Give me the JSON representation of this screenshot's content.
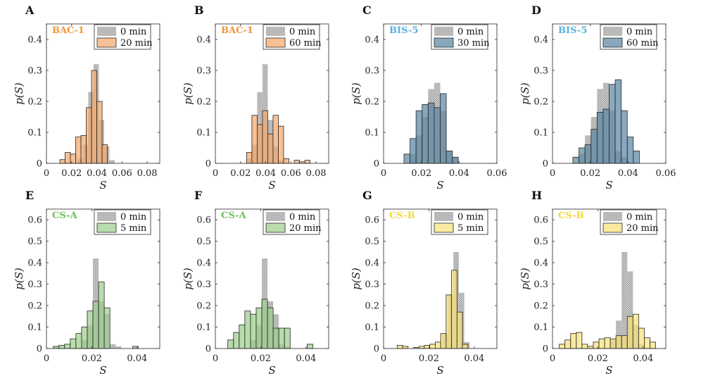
{
  "figure": {
    "ylabel": "p(S)",
    "xlabel": "S"
  },
  "colors": {
    "baseline_fill": "#c8c8c8",
    "orange": "#f4a96c",
    "orange_label": "#f0953a",
    "blue": "#5b87a4",
    "blue_label": "#5ab0dc",
    "green": "#9ccf8c",
    "green_label": "#6cc25a",
    "yellow": "#f7e27a",
    "yellow_label": "#f2d83c",
    "axis": "#262626",
    "edge": "#262626"
  },
  "chart_data": [
    {
      "panel": "A",
      "type": "bar",
      "strain": "BAC-1",
      "strain_color": "orange_label",
      "treat_color": "orange",
      "legend": [
        "0 min",
        "20 min"
      ],
      "xlabel": "S",
      "ylabel": "p(S)",
      "xlim": [
        0,
        0.09
      ],
      "ylim": [
        0,
        0.45
      ],
      "xticks": [
        0,
        0.02,
        0.04,
        0.06,
        0.08
      ],
      "xtick_labels": [
        "0",
        "0.02",
        "0.04",
        "0.06",
        "0.08"
      ],
      "yticks": [
        0,
        0.1,
        0.2,
        0.3,
        0.4
      ],
      "ytick_labels": [
        "0",
        "0.1",
        "0.2",
        "0.3",
        "0.4"
      ],
      "bin_width": 0.0042,
      "baseline": {
        "name": "0 min",
        "edges_start": 0.0248,
        "values": [
          0.015,
          0.06,
          0.23,
          0.32,
          0.14,
          0.055,
          0.01
        ]
      },
      "treated": {
        "name": "20 min",
        "edges_start": 0.0106,
        "values": [
          0.012,
          0.035,
          0.03,
          0.085,
          0.09,
          0.18,
          0.3,
          0.2,
          0.06
        ]
      }
    },
    {
      "panel": "B",
      "type": "bar",
      "strain": "BAC-1",
      "strain_color": "orange_label",
      "treat_color": "orange",
      "legend": [
        "0 min",
        "60 min"
      ],
      "xlabel": "S",
      "ylabel": "p(S)",
      "xlim": [
        0,
        0.09
      ],
      "ylim": [
        0,
        0.45
      ],
      "xticks": [
        0,
        0.02,
        0.04,
        0.06,
        0.08
      ],
      "xtick_labels": [
        "0",
        "0.02",
        "0.04",
        "0.06",
        "0.08"
      ],
      "yticks": [
        0,
        0.1,
        0.2,
        0.3,
        0.4
      ],
      "ytick_labels": [
        "0",
        "0.1",
        "0.2",
        "0.3",
        "0.4"
      ],
      "bin_width": 0.0042,
      "baseline": {
        "name": "0 min",
        "edges_start": 0.0248,
        "values": [
          0.015,
          0.06,
          0.23,
          0.32,
          0.14,
          0.055,
          0.01
        ]
      },
      "treated": {
        "name": "60 min",
        "edges_start": 0.0248,
        "values": [
          0.035,
          0.155,
          0.125,
          0.17,
          0.095,
          0.155,
          0.12,
          0.015,
          0,
          0.01,
          0.005,
          0.01
        ]
      }
    },
    {
      "panel": "C",
      "type": "bar",
      "strain": "BIS-5",
      "strain_color": "blue_label",
      "treat_color": "blue",
      "legend": [
        "0 min",
        "30 min"
      ],
      "xlabel": "S",
      "ylabel": "p(S)",
      "xlim": [
        0,
        0.06
      ],
      "ylim": [
        0,
        0.45
      ],
      "xticks": [
        0,
        0.02,
        0.04,
        0.06
      ],
      "xtick_labels": [
        "0",
        "0.02",
        "0.04",
        "0.06"
      ],
      "yticks": [
        0,
        0.1,
        0.2,
        0.3,
        0.4
      ],
      "ytick_labels": [
        "0",
        "0.1",
        "0.2",
        "0.3",
        "0.4"
      ],
      "bin_width": 0.0032,
      "baseline": {
        "name": "0 min",
        "edges_start": 0.014,
        "values": [
          0.03,
          0.09,
          0.15,
          0.24,
          0.26,
          0.17,
          0.04,
          0.02
        ]
      },
      "treated": {
        "name": "30 min",
        "edges_start": 0.0108,
        "values": [
          0.03,
          0.08,
          0.17,
          0.19,
          0.195,
          0.18,
          0.225,
          0.04,
          0.02
        ]
      }
    },
    {
      "panel": "D",
      "type": "bar",
      "strain": "BIS-5",
      "strain_color": "blue_label",
      "treat_color": "blue",
      "legend": [
        "0 min",
        "60 min"
      ],
      "xlabel": "S",
      "ylabel": "p(S)",
      "xlim": [
        0,
        0.06
      ],
      "ylim": [
        0,
        0.45
      ],
      "xticks": [
        0,
        0.02,
        0.04,
        0.06
      ],
      "xtick_labels": [
        "0",
        "0.02",
        "0.04",
        "0.06"
      ],
      "yticks": [
        0,
        0.1,
        0.2,
        0.3,
        0.4
      ],
      "ytick_labels": [
        "0",
        "0.1",
        "0.2",
        "0.3",
        "0.4"
      ],
      "bin_width": 0.0032,
      "baseline": {
        "name": "0 min",
        "edges_start": 0.014,
        "values": [
          0.03,
          0.09,
          0.15,
          0.24,
          0.26,
          0.17,
          0.04,
          0.02
        ]
      },
      "treated": {
        "name": "60 min",
        "edges_start": 0.0108,
        "values": [
          0.02,
          0.05,
          0.06,
          0.11,
          0.165,
          0.175,
          0.255,
          0.27,
          0.17,
          0.085,
          0.04
        ]
      }
    },
    {
      "panel": "E",
      "type": "bar",
      "strain": "CS-A",
      "strain_color": "green_label",
      "treat_color": "green",
      "legend": [
        "0 min",
        "5 min"
      ],
      "xlabel": "S",
      "ylabel": "p(S)",
      "xlim": [
        0,
        0.05
      ],
      "ylim": [
        0,
        0.65
      ],
      "xticks": [
        0,
        0.02,
        0.04
      ],
      "xtick_labels": [
        "0",
        "0.02",
        "0.04"
      ],
      "yticks": [
        0,
        0.1,
        0.2,
        0.3,
        0.4,
        0.5,
        0.6
      ],
      "ytick_labels": [
        "0",
        "0.1",
        "0.2",
        "0.3",
        "0.4",
        "0.5",
        "0.6"
      ],
      "bin_width": 0.0025,
      "baseline": {
        "name": "0 min",
        "edges_start": 0.0155,
        "values": [
          0.04,
          0.11,
          0.42,
          0.22,
          0.16,
          0.02,
          0.01
        ]
      },
      "treated": {
        "name": "5 min",
        "edges_start": 0.003,
        "values": [
          0.01,
          0.015,
          0.02,
          0.045,
          0.07,
          0.1,
          0.175,
          0.22,
          0.31,
          0.19,
          0,
          0,
          0,
          0,
          0.01
        ]
      }
    },
    {
      "panel": "F",
      "type": "bar",
      "strain": "CS-A",
      "strain_color": "green_label",
      "treat_color": "green",
      "legend": [
        "0 min",
        "20 min"
      ],
      "xlabel": "S",
      "ylabel": "p(S)",
      "xlim": [
        0,
        0.05
      ],
      "ylim": [
        0,
        0.65
      ],
      "xticks": [
        0,
        0.02,
        0.04
      ],
      "xtick_labels": [
        "0",
        "0.02",
        "0.04"
      ],
      "yticks": [
        0,
        0.1,
        0.2,
        0.3,
        0.4,
        0.5,
        0.6
      ],
      "ytick_labels": [
        "0",
        "0.1",
        "0.2",
        "0.3",
        "0.4",
        "0.5",
        "0.6"
      ],
      "bin_width": 0.0025,
      "baseline": {
        "name": "0 min",
        "edges_start": 0.0155,
        "values": [
          0.04,
          0.11,
          0.42,
          0.22,
          0.16,
          0.02,
          0.01
        ]
      },
      "treated": {
        "name": "20 min",
        "edges_start": 0.0055,
        "values": [
          0.04,
          0.075,
          0.11,
          0.175,
          0.16,
          0.19,
          0.23,
          0.19,
          0.095,
          0.095,
          0.095,
          0,
          0,
          0,
          0.02
        ]
      }
    },
    {
      "panel": "G",
      "type": "bar",
      "strain": "CS-B",
      "strain_color": "yellow_label",
      "treat_color": "yellow",
      "legend": [
        "0 min",
        "5 min"
      ],
      "xlabel": "S",
      "ylabel": "p(S)",
      "xlim": [
        0,
        0.05
      ],
      "ylim": [
        0,
        0.65
      ],
      "xticks": [
        0,
        0.02,
        0.04
      ],
      "xtick_labels": [
        "0",
        "0.02",
        "0.04"
      ],
      "yticks": [
        0,
        0.1,
        0.2,
        0.3,
        0.4,
        0.5,
        0.6
      ],
      "ytick_labels": [
        "0",
        "0.1",
        "0.2",
        "0.3",
        "0.4",
        "0.5",
        "0.6"
      ],
      "bin_width": 0.0024,
      "baseline": {
        "name": "0 min",
        "edges_start": 0.026,
        "values": [
          0.07,
          0.25,
          0.45,
          0.26,
          0.03
        ]
      },
      "treated": {
        "name": "5 min",
        "edges_start": 0.006,
        "values": [
          0.015,
          0.01,
          0,
          0.005,
          0.01,
          0.015,
          0.02,
          0.03,
          0.07,
          0.25,
          0.365,
          0.17,
          0.02
        ]
      }
    },
    {
      "panel": "H",
      "type": "bar",
      "strain": "CS-B",
      "strain_color": "yellow_label",
      "treat_color": "yellow",
      "legend": [
        "0 min",
        "20 min"
      ],
      "xlabel": "S",
      "ylabel": "p(S)",
      "xlim": [
        0,
        0.05
      ],
      "ylim": [
        0,
        0.65
      ],
      "xticks": [
        0,
        0.02,
        0.04
      ],
      "xtick_labels": [
        "0",
        "0.02",
        "0.04"
      ],
      "yticks": [
        0,
        0.1,
        0.2,
        0.3,
        0.4,
        0.5,
        0.6
      ],
      "ytick_labels": [
        "0",
        "0.1",
        "0.2",
        "0.3",
        "0.4",
        "0.5",
        "0.6"
      ],
      "bin_width": 0.0025,
      "baseline": {
        "name": "0 min",
        "edges_start": 0.0255,
        "values": [
          0.04,
          0.13,
          0.45,
          0.36,
          0.11,
          0.02
        ]
      },
      "treated": {
        "name": "20 min",
        "edges_start": 0.003,
        "values": [
          0.02,
          0.04,
          0.07,
          0.075,
          0.02,
          0.01,
          0.03,
          0.045,
          0.05,
          0.045,
          0.06,
          0.06,
          0.15,
          0.16,
          0.095,
          0.05,
          0.03
        ]
      }
    }
  ]
}
